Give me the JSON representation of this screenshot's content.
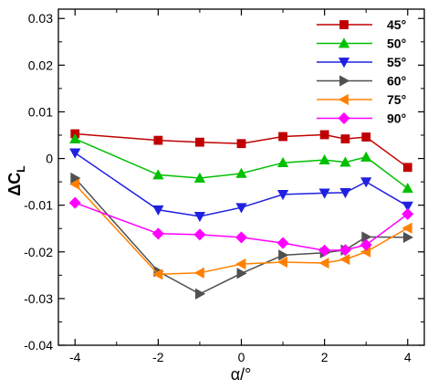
{
  "chart_data": {
    "type": "line",
    "xlabel": "α/°",
    "ylabel": {
      "main": "ΔC",
      "sub": "L"
    },
    "xlim": [
      -4.4,
      4.4
    ],
    "ylim": [
      -0.04,
      0.032
    ],
    "xticks": [
      -4,
      -2,
      0,
      2,
      4
    ],
    "xtick_labels": [
      "-4",
      "-2",
      "0",
      "2",
      "4"
    ],
    "yticks": [
      -0.04,
      -0.03,
      -0.02,
      -0.01,
      0,
      0.01,
      0.02,
      0.03
    ],
    "ytick_labels": [
      "-0.04",
      "-0.03",
      "-0.02",
      "-0.01",
      "0",
      "0.01",
      "0.02",
      "0.03"
    ],
    "grid": false,
    "legend_position": "top-right",
    "series": [
      {
        "name": "45°",
        "color": "#c00000",
        "marker": "square",
        "x": [
          -4,
          -2,
          -1,
          0,
          1,
          2,
          2.5,
          3,
          4
        ],
        "y": [
          0.0053,
          0.0039,
          0.0035,
          0.0032,
          0.0047,
          0.0051,
          0.0042,
          0.0046,
          -0.0019
        ]
      },
      {
        "name": "50°",
        "color": "#00c000",
        "marker": "triangle-up",
        "x": [
          -4,
          -2,
          -1,
          0,
          1,
          2,
          2.5,
          3,
          4
        ],
        "y": [
          0.0042,
          -0.0035,
          -0.0042,
          -0.0032,
          -0.0009,
          -0.0003,
          -0.0008,
          0.0003,
          -0.0064
        ]
      },
      {
        "name": "55°",
        "color": "#2020e0",
        "marker": "triangle-down",
        "x": [
          -4,
          -2,
          -1,
          0,
          1,
          2,
          2.5,
          3,
          4
        ],
        "y": [
          0.0012,
          -0.011,
          -0.0124,
          -0.0105,
          -0.0077,
          -0.0074,
          -0.0073,
          -0.005,
          -0.0102
        ]
      },
      {
        "name": "60°",
        "color": "#505050",
        "marker": "triangle-right",
        "x": [
          -4,
          -2,
          -1,
          0,
          1,
          2,
          2.5,
          3,
          4
        ],
        "y": [
          -0.0042,
          -0.0242,
          -0.029,
          -0.0246,
          -0.0207,
          -0.0202,
          -0.0196,
          -0.0168,
          -0.0169
        ]
      },
      {
        "name": "75°",
        "color": "#ff8000",
        "marker": "triangle-left",
        "x": [
          -4,
          -2,
          -1,
          0,
          1,
          2,
          2.5,
          3,
          4
        ],
        "y": [
          -0.0055,
          -0.0248,
          -0.0245,
          -0.0226,
          -0.0222,
          -0.0224,
          -0.0216,
          -0.02,
          -0.0149
        ]
      },
      {
        "name": "90°",
        "color": "#ff00ff",
        "marker": "diamond",
        "x": [
          -4,
          -2,
          -1,
          0,
          1,
          2,
          2.5,
          3,
          4
        ],
        "y": [
          -0.0095,
          -0.0161,
          -0.0163,
          -0.0169,
          -0.0181,
          -0.0197,
          -0.0196,
          -0.0185,
          -0.0119
        ]
      }
    ]
  }
}
